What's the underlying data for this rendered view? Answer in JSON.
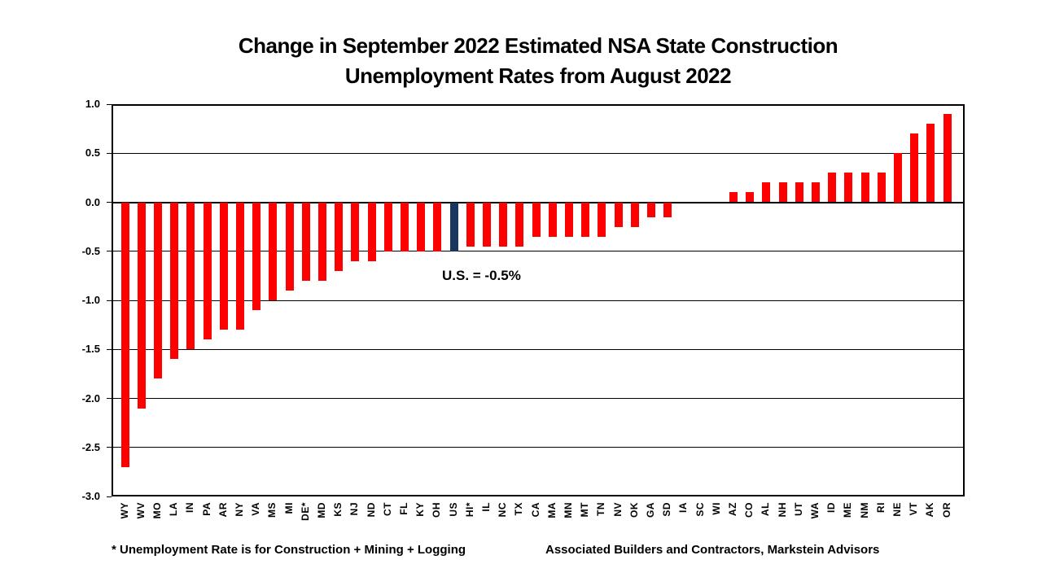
{
  "title": {
    "line1": "Change in September 2022 Estimated NSA State Construction",
    "line2": "Unemployment Rates from August 2022"
  },
  "chart_data": {
    "type": "bar",
    "title": "Change in September 2022 Estimated NSA State Construction Unemployment Rates from August 2022",
    "xlabel": "",
    "ylabel": "",
    "ylim": [
      -3.0,
      1.0
    ],
    "ytick_interval": 0.5,
    "yticks": [
      1.0,
      0.5,
      0.0,
      -0.5,
      -1.0,
      -1.5,
      -2.0,
      -2.5,
      -3.0
    ],
    "ytick_labels": [
      "1.0",
      "0.5",
      "0.0",
      "-0.5",
      "-1.0",
      "-1.5",
      "-2.0",
      "-2.5",
      "-3.0"
    ],
    "grid": true,
    "legend_position": "none",
    "bar_color": "#FF0000",
    "categories": [
      "WY",
      "WV",
      "MO",
      "LA",
      "IN",
      "PA",
      "AR",
      "NY",
      "VA",
      "MS",
      "MI",
      "DE*",
      "MD",
      "KS",
      "NJ",
      "ND",
      "CT",
      "FL",
      "KY",
      "OH",
      "US",
      "HI*",
      "IL",
      "NC",
      "TX",
      "CA",
      "MA",
      "MN",
      "MT",
      "TN",
      "NV",
      "OK",
      "GA",
      "SD",
      "IA",
      "SC",
      "WI",
      "AZ",
      "CO",
      "AL",
      "NH",
      "UT",
      "WA",
      "ID",
      "ME",
      "NM",
      "RI",
      "NE",
      "VT",
      "AK",
      "OR"
    ],
    "values": [
      -2.7,
      -2.1,
      -1.8,
      -1.6,
      -1.5,
      -1.4,
      -1.3,
      -1.3,
      -1.1,
      -1.0,
      -0.9,
      -0.8,
      -0.8,
      -0.7,
      -0.6,
      -0.6,
      -0.5,
      -0.5,
      -0.5,
      -0.5,
      -0.5,
      -0.45,
      -0.45,
      -0.45,
      -0.45,
      -0.35,
      -0.35,
      -0.35,
      -0.35,
      -0.35,
      -0.25,
      -0.25,
      -0.15,
      -0.15,
      0.0,
      0.0,
      0.0,
      0.1,
      0.1,
      0.2,
      0.2,
      0.2,
      0.2,
      0.3,
      0.3,
      0.3,
      0.3,
      0.5,
      0.7,
      0.8,
      0.9
    ],
    "highlight": {
      "category": "US",
      "color": "#17375E",
      "annotation": "U.S. = -0.5%"
    }
  },
  "footer": {
    "note": "* Unemployment Rate is for Construction + Mining + Logging",
    "source": "Associated Builders and Contractors, Markstein Advisors"
  }
}
